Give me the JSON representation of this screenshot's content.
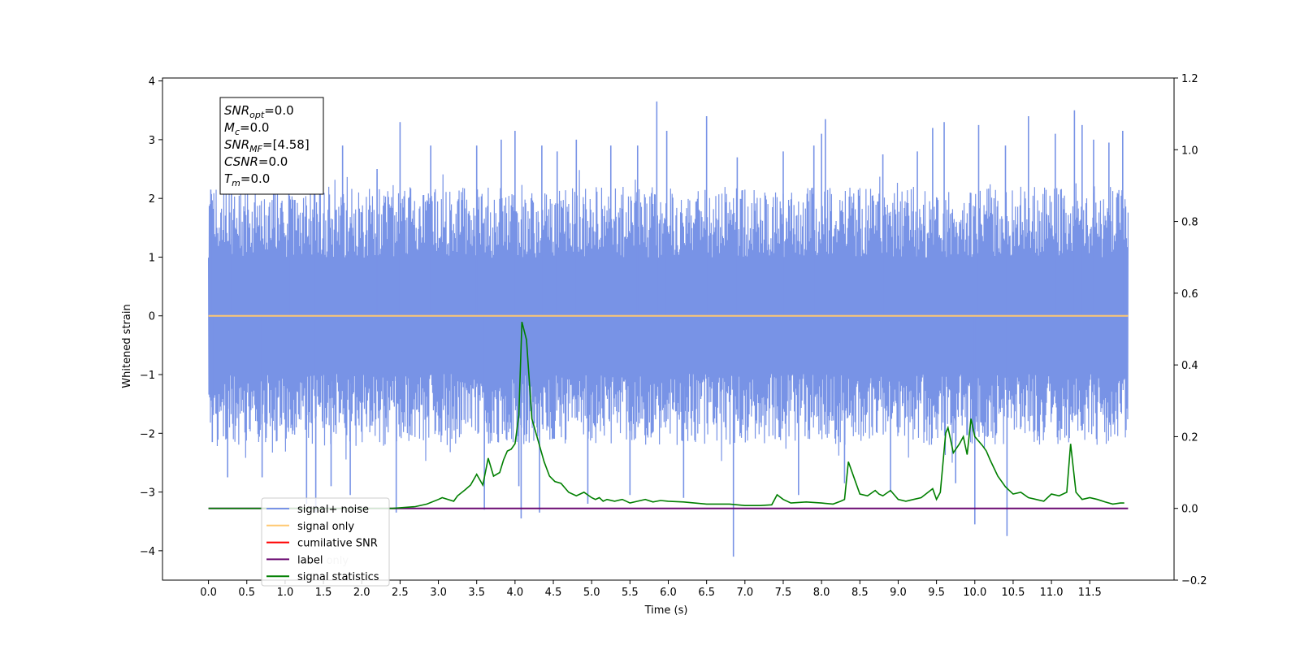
{
  "chart_data": {
    "type": "line",
    "xlabel": "Time (s)",
    "ylabel": "Whitened strain",
    "xlim": [
      -0.6,
      12.6
    ],
    "ylim": [
      -4.5,
      4.05
    ],
    "y2lim": [
      -0.2,
      1.2
    ],
    "x_ticks": [
      "0.0",
      "0.5",
      "1.0",
      "1.5",
      "2.0",
      "2.5",
      "3.0",
      "3.5",
      "4.0",
      "4.5",
      "5.0",
      "5.5",
      "6.0",
      "6.5",
      "7.0",
      "7.5",
      "8.0",
      "8.5",
      "9.0",
      "9.5",
      "10.0",
      "10.5",
      "11.0",
      "11.5"
    ],
    "y_ticks": [
      "4",
      "3",
      "2",
      "1",
      "0",
      "−1",
      "−2",
      "−3",
      "−4"
    ],
    "y2_ticks": [
      "1.2",
      "1.0",
      "0.8",
      "0.6",
      "0.4",
      "0.2",
      "0.0",
      "−0.2"
    ],
    "grid": false,
    "legend_position": "lower-left",
    "stats_box": [
      {
        "name": "SNR",
        "sub": "opt",
        "value": "=0.0"
      },
      {
        "name": "M",
        "sub": "c",
        "value": "=0.0"
      },
      {
        "name": "SNR",
        "sub": "MF",
        "value": "=[4.58]"
      },
      {
        "name": "CSNR",
        "sub": "",
        "value": "=0.0"
      },
      {
        "name": "T",
        "sub": "m",
        "value": "=0.0"
      }
    ],
    "legend": [
      {
        "label": "signal+ noise",
        "color": "#7893e6"
      },
      {
        "label": "signal only",
        "color": "#ffc870"
      },
      {
        "label": "cumilative SNR",
        "color": "#ff0000"
      },
      {
        "label": "label",
        "color": "#6a0a72"
      },
      {
        "label": "signal statistics",
        "color": "#007f00"
      }
    ],
    "overlapping_text": [
      {
        "label": "label only"
      },
      {
        "label": "signal statistics"
      }
    ],
    "series": [
      {
        "name": "signal+ noise",
        "axis": "left",
        "color": "#7893e6",
        "x_range": [
          0.0,
          12.0
        ],
        "envelope_upper": 2.2,
        "envelope_lower": -2.2,
        "peaks": [
          [
            0.03,
            2.15
          ],
          [
            0.05,
            -2.15
          ],
          [
            0.25,
            -2.75
          ],
          [
            0.3,
            3.15
          ],
          [
            0.7,
            -2.75
          ],
          [
            0.85,
            2.5
          ],
          [
            1.05,
            2.6
          ],
          [
            1.28,
            -3.2
          ],
          [
            1.38,
            2.85
          ],
          [
            1.4,
            -3.35
          ],
          [
            1.6,
            -2.9
          ],
          [
            1.75,
            2.9
          ],
          [
            1.85,
            -3.05
          ],
          [
            2.2,
            2.5
          ],
          [
            2.5,
            3.3
          ],
          [
            2.45,
            -3.35
          ],
          [
            2.9,
            2.9
          ],
          [
            3.5,
            2.9
          ],
          [
            3.6,
            -3.3
          ],
          [
            3.82,
            3.0
          ],
          [
            4.0,
            3.15
          ],
          [
            4.05,
            -2.9
          ],
          [
            4.08,
            -3.45
          ],
          [
            4.35,
            2.9
          ],
          [
            4.32,
            -3.35
          ],
          [
            4.55,
            2.8
          ],
          [
            4.8,
            3.0
          ],
          [
            4.95,
            -3.2
          ],
          [
            5.25,
            2.9
          ],
          [
            5.5,
            -3.05
          ],
          [
            5.6,
            2.9
          ],
          [
            5.85,
            3.65
          ],
          [
            5.98,
            3.15
          ],
          [
            6.2,
            -3.1
          ],
          [
            6.5,
            3.4
          ],
          [
            6.85,
            -4.1
          ],
          [
            6.9,
            2.7
          ],
          [
            7.5,
            2.8
          ],
          [
            7.7,
            -3.05
          ],
          [
            7.9,
            2.9
          ],
          [
            8.0,
            3.1
          ],
          [
            8.05,
            3.35
          ],
          [
            8.3,
            -2.85
          ],
          [
            8.8,
            2.75
          ],
          [
            8.9,
            -3.0
          ],
          [
            9.25,
            2.8
          ],
          [
            9.45,
            3.2
          ],
          [
            9.6,
            3.3
          ],
          [
            9.75,
            -2.85
          ],
          [
            10.0,
            -3.55
          ],
          [
            10.05,
            3.25
          ],
          [
            10.42,
            -3.75
          ],
          [
            10.4,
            2.9
          ],
          [
            10.7,
            3.4
          ],
          [
            11.05,
            3.1
          ],
          [
            11.3,
            3.5
          ],
          [
            11.4,
            3.25
          ],
          [
            11.55,
            3.0
          ],
          [
            11.75,
            2.95
          ],
          [
            11.93,
            3.15
          ]
        ]
      },
      {
        "name": "signal only",
        "axis": "left",
        "color": "#ffc870",
        "x": [
          0.0,
          12.0
        ],
        "y": [
          0.0,
          0.0
        ]
      },
      {
        "name": "label",
        "axis": "right",
        "color": "#6a0a72",
        "x": [
          0.0,
          12.0
        ],
        "y": [
          0.0,
          0.0
        ]
      },
      {
        "name": "signal statistics",
        "axis": "right",
        "color": "#007f00",
        "x": [
          0.0,
          2.4,
          2.7,
          2.85,
          3.0,
          3.05,
          3.2,
          3.25,
          3.35,
          3.42,
          3.5,
          3.58,
          3.65,
          3.72,
          3.8,
          3.85,
          3.9,
          3.95,
          4.0,
          4.05,
          4.09,
          4.15,
          4.22,
          4.3,
          4.38,
          4.45,
          4.52,
          4.6,
          4.7,
          4.8,
          4.9,
          5.0,
          5.05,
          5.1,
          5.15,
          5.2,
          5.3,
          5.4,
          5.5,
          5.6,
          5.7,
          5.8,
          5.9,
          6.0,
          6.2,
          6.5,
          6.8,
          7.0,
          7.2,
          7.35,
          7.42,
          7.5,
          7.6,
          7.8,
          8.0,
          8.15,
          8.25,
          8.3,
          8.35,
          8.4,
          8.5,
          8.6,
          8.7,
          8.75,
          8.8,
          8.9,
          9.0,
          9.1,
          9.2,
          9.3,
          9.45,
          9.5,
          9.55,
          9.62,
          9.65,
          9.72,
          9.8,
          9.85,
          9.9,
          9.95,
          10.0,
          10.1,
          10.15,
          10.2,
          10.3,
          10.4,
          10.5,
          10.6,
          10.7,
          10.8,
          10.9,
          11.0,
          11.1,
          11.2,
          11.25,
          11.32,
          11.4,
          11.5,
          11.6,
          11.7,
          11.8,
          11.9,
          11.95
        ],
        "y": [
          0.0,
          0.0,
          0.005,
          0.012,
          0.025,
          0.03,
          0.02,
          0.035,
          0.052,
          0.065,
          0.095,
          0.065,
          0.14,
          0.09,
          0.1,
          0.135,
          0.16,
          0.165,
          0.18,
          0.26,
          0.52,
          0.47,
          0.25,
          0.19,
          0.13,
          0.09,
          0.075,
          0.07,
          0.045,
          0.035,
          0.045,
          0.03,
          0.025,
          0.03,
          0.02,
          0.025,
          0.02,
          0.025,
          0.015,
          0.02,
          0.025,
          0.018,
          0.022,
          0.02,
          0.018,
          0.012,
          0.012,
          0.008,
          0.008,
          0.01,
          0.038,
          0.025,
          0.015,
          0.018,
          0.015,
          0.012,
          0.02,
          0.025,
          0.13,
          0.1,
          0.04,
          0.035,
          0.05,
          0.04,
          0.035,
          0.05,
          0.025,
          0.02,
          0.025,
          0.03,
          0.055,
          0.025,
          0.045,
          0.21,
          0.225,
          0.155,
          0.18,
          0.2,
          0.15,
          0.25,
          0.2,
          0.175,
          0.16,
          0.135,
          0.09,
          0.06,
          0.04,
          0.045,
          0.03,
          0.025,
          0.02,
          0.04,
          0.035,
          0.045,
          0.18,
          0.045,
          0.025,
          0.03,
          0.025,
          0.018,
          0.012,
          0.015,
          0.015
        ]
      }
    ]
  }
}
